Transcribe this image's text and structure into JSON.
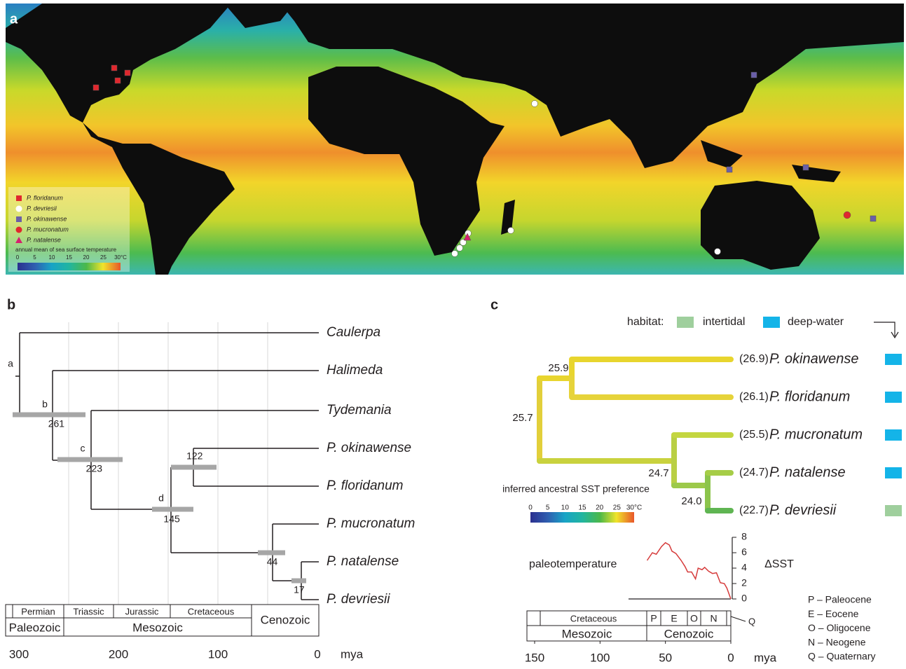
{
  "panel_a": {
    "label": "a",
    "legend": [
      {
        "name": "P. floridanum",
        "marker": "square",
        "color": "#e0282e"
      },
      {
        "name": "P. devriesii",
        "marker": "circle",
        "color": "#ffffff"
      },
      {
        "name": "P. okinawense",
        "marker": "square",
        "color": "#6a5fa8"
      },
      {
        "name": "P. mucronatum",
        "marker": "circle",
        "color": "#e0282e"
      },
      {
        "name": "P. natalense",
        "marker": "triangle",
        "color": "#d6206f"
      }
    ],
    "colorbar_title": "annual mean of sea surface temperature",
    "colorbar_ticks": [
      0,
      5,
      10,
      15,
      20,
      25,
      {
        "value": 30,
        "label": "30°C"
      }
    ]
  },
  "panel_b": {
    "label": "b",
    "taxa": [
      "Caulerpa",
      "Halimeda",
      "Tydemania",
      "P. okinawense",
      "P. floridanum",
      "P. mucronatum",
      "P. natalense",
      "P. devriesii"
    ],
    "nodes": [
      {
        "letter": "a"
      },
      {
        "letter": "b",
        "age": 261
      },
      {
        "letter": "c",
        "age": 223
      },
      {
        "letter": "d",
        "age": 145
      },
      {
        "age": 122
      },
      {
        "age": 44
      },
      {
        "age": 17
      }
    ],
    "periods": [
      "Permian",
      "Triassic",
      "Jurassic",
      "Cretaceous"
    ],
    "eras": [
      "Paleozoic",
      "Mesozoic",
      "Cenozoic"
    ],
    "xticks": [
      300,
      200,
      100,
      0
    ],
    "unit": "mya"
  },
  "panel_c": {
    "label": "c",
    "habitat_title": "habitat:",
    "habitats": [
      {
        "name": "intertidal",
        "color": "#9fcf9d"
      },
      {
        "name": "deep-water",
        "color": "#14b4e8"
      }
    ],
    "taxa": [
      {
        "name": "P. okinawense",
        "sst": "(26.9)",
        "habitat": 1
      },
      {
        "name": "P. floridanum",
        "sst": "(26.1)",
        "habitat": 1
      },
      {
        "name": "P. mucronatum",
        "sst": "(25.5)",
        "habitat": 1
      },
      {
        "name": "P. natalense",
        "sst": "(24.7)",
        "habitat": 1
      },
      {
        "name": "P. devriesii",
        "sst": "(22.7)",
        "habitat": 0
      }
    ],
    "node_values": [
      "25.9",
      "25.7",
      "24.7",
      "24.0"
    ],
    "colorbar_title": "inferred ancestral SST preference",
    "colorbar_ticks": [
      0,
      5,
      10,
      15,
      20,
      25,
      {
        "value": 30,
        "label": "30°C"
      }
    ],
    "periods": [
      "Cretaceous",
      "P",
      "E",
      "O",
      "N"
    ],
    "q_label": "Q",
    "eras": [
      "Mesozoic",
      "Cenozoic"
    ],
    "key": [
      "P – Paleocene",
      "E – Eocene",
      "O – Oligocene",
      "N – Neogene",
      "Q – Quaternary"
    ]
  },
  "chart_data": {
    "type": "line",
    "title": "paleotemperature",
    "y_label": "ΔSST",
    "x_unit": "mya",
    "color": "#d63b3b",
    "x": [
      64,
      60,
      57,
      53,
      50,
      47,
      45,
      42,
      38,
      35,
      33,
      30,
      27,
      25,
      22,
      20,
      17,
      14,
      11,
      8,
      5,
      3,
      0
    ],
    "values": [
      5,
      6,
      5.8,
      6.8,
      7.3,
      7,
      6.2,
      5.9,
      5,
      4.2,
      3.5,
      3.5,
      2.6,
      4,
      3.8,
      4.1,
      3.6,
      3.3,
      3.4,
      2.1,
      2,
      1.4,
      0
    ],
    "xlim": [
      150,
      0
    ],
    "xticks": [
      150,
      100,
      50,
      0
    ],
    "ylim": [
      0,
      8
    ],
    "yticks": [
      0,
      2,
      4,
      6,
      8
    ]
  }
}
